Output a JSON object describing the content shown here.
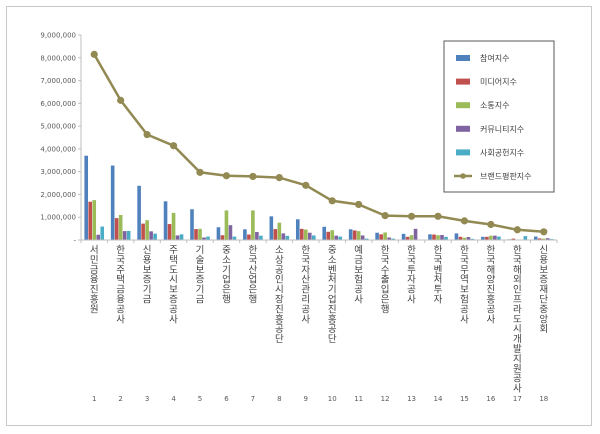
{
  "chart_data": {
    "type": "bar",
    "title": "",
    "xlabel": "",
    "ylabel": "",
    "ylim": [
      0,
      9000000
    ],
    "yticks": [
      0,
      1000000,
      2000000,
      3000000,
      4000000,
      5000000,
      6000000,
      7000000,
      8000000,
      9000000
    ],
    "ytick_labels": [
      "-",
      "1,000,000",
      "2,000,000",
      "3,000,000",
      "4,000,000",
      "5,000,000",
      "6,000,000",
      "7,000,000",
      "8,000,000",
      "9,000,000"
    ],
    "grid": false,
    "legend_position": "top-right",
    "numbers": [
      "1",
      "2",
      "3",
      "4",
      "5",
      "6",
      "7",
      "8",
      "9",
      "10",
      "11",
      "12",
      "13",
      "14",
      "15",
      "16",
      "17",
      "18"
    ],
    "categories": [
      "서민금융진흥원",
      "한국주택금융공사",
      "신용보증기금",
      "주택도시보증공사",
      "기술보증기금",
      "중소기업은행",
      "한국산업은행",
      "소상공인시장진흥공단",
      "한국자산관리공사",
      "중소벤처기업진흥공단",
      "예금보험공사",
      "한국수출입은행",
      "한국투자공사",
      "한국벤처투자",
      "한국무역보험공사",
      "한국해양진흥공사",
      "한국해외인프라도시개발지원공사",
      "신용보증재단중앙회"
    ],
    "series": [
      {
        "name": "참여지수",
        "kind": "bar",
        "color": "#4f81bd",
        "values": [
          3700000,
          3270000,
          2380000,
          1700000,
          1350000,
          560000,
          470000,
          1040000,
          910000,
          580000,
          470000,
          320000,
          270000,
          250000,
          290000,
          140000,
          30000,
          150000
        ]
      },
      {
        "name": "미디어지수",
        "kind": "bar",
        "color": "#c0504d",
        "values": [
          1680000,
          960000,
          720000,
          700000,
          480000,
          210000,
          240000,
          480000,
          490000,
          360000,
          420000,
          250000,
          140000,
          240000,
          140000,
          140000,
          60000,
          70000
        ]
      },
      {
        "name": "소통지수",
        "kind": "bar",
        "color": "#9bbb59",
        "values": [
          1750000,
          1100000,
          870000,
          1190000,
          490000,
          1300000,
          1300000,
          760000,
          460000,
          430000,
          390000,
          330000,
          210000,
          210000,
          100000,
          190000,
          20000,
          60000
        ]
      },
      {
        "name": "커뮤니티지수",
        "kind": "bar",
        "color": "#8064a2",
        "values": [
          230000,
          390000,
          380000,
          200000,
          110000,
          650000,
          350000,
          290000,
          320000,
          190000,
          200000,
          110000,
          490000,
          220000,
          130000,
          190000,
          20000,
          80000
        ]
      },
      {
        "name": "사회공헌지수",
        "kind": "bar",
        "color": "#4bacc6",
        "values": [
          590000,
          400000,
          280000,
          250000,
          150000,
          150000,
          190000,
          180000,
          200000,
          150000,
          60000,
          60000,
          20000,
          140000,
          50000,
          150000,
          170000,
          40000
        ]
      },
      {
        "name": "브랜드평판지수",
        "kind": "line",
        "color": "#938953",
        "values": [
          8150000,
          6130000,
          4630000,
          4140000,
          2970000,
          2820000,
          2790000,
          2740000,
          2400000,
          1720000,
          1560000,
          1070000,
          1040000,
          1040000,
          840000,
          680000,
          450000,
          360000
        ]
      }
    ]
  }
}
